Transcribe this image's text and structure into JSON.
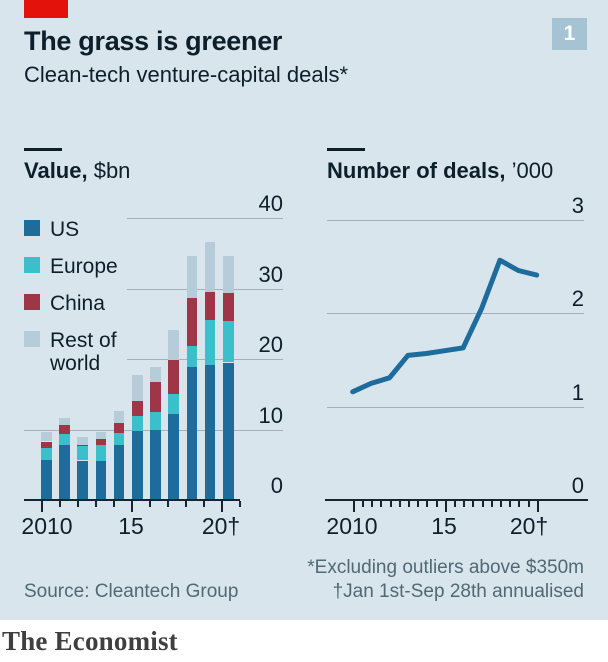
{
  "header": {
    "title": "The grass is greener",
    "subtitle": "Clean-tech venture-capital deals*",
    "figure_number": "1"
  },
  "panels": {
    "left": {
      "title_bold": "Value,",
      "title_unit": " $bn"
    },
    "right": {
      "title_bold": "Number of deals,",
      "title_unit": " ’000"
    }
  },
  "chart_data": [
    {
      "type": "bar",
      "stacked": true,
      "title": "Value, $bn",
      "categories": [
        2010,
        2011,
        2012,
        2013,
        2014,
        2015,
        2016,
        2017,
        2018,
        2019,
        2020
      ],
      "series": [
        {
          "name": "US",
          "color": "#1d6c9c",
          "values": [
            5.7,
            7.8,
            5.6,
            5.6,
            7.8,
            9.8,
            9.9,
            12.2,
            18.9,
            19.1,
            19.5
          ]
        },
        {
          "name": "Europe",
          "color": "#3bbfca",
          "values": [
            1.7,
            1.6,
            2.0,
            2.2,
            1.7,
            2.1,
            2.6,
            2.8,
            3.0,
            6.4,
            5.9
          ]
        },
        {
          "name": "China",
          "color": "#9e3647",
          "values": [
            0.9,
            1.2,
            0.2,
            0.9,
            1.4,
            2.1,
            4.2,
            4.9,
            6.8,
            4.0,
            3.9
          ]
        },
        {
          "name": "Rest of world",
          "color": "#b6cdd9",
          "values": [
            1.4,
            1.1,
            1.1,
            0.9,
            1.7,
            3.8,
            2.2,
            4.2,
            5.9,
            7.1,
            5.3
          ]
        }
      ],
      "ylim": [
        0,
        40
      ],
      "yticks": [
        0,
        10,
        20,
        30,
        40
      ],
      "xtick_labels": [
        "2010",
        "15",
        "20†"
      ],
      "grid": true,
      "legend_position": "left"
    },
    {
      "type": "line",
      "title": "Number of deals, ’000",
      "x": [
        2010,
        2011,
        2012,
        2013,
        2014,
        2015,
        2016,
        2017,
        2018,
        2019,
        2020
      ],
      "values": [
        1.16,
        1.25,
        1.31,
        1.55,
        1.57,
        1.6,
        1.63,
        2.05,
        2.57,
        2.46,
        2.41
      ],
      "color": "#1d6c9c",
      "ylim": [
        0,
        3
      ],
      "yticks": [
        0,
        1,
        2,
        3
      ],
      "xtick_labels": [
        "2010",
        "15",
        "20†"
      ],
      "grid": true
    }
  ],
  "footnotes": [
    "*Excluding outliers above $350m",
    "†Jan 1st-Sep 28th annualised"
  ],
  "source": "Source: Cleantech Group",
  "brand": "The Economist",
  "colors": {
    "background": "#d8e5ec",
    "accent_red": "#e3120b",
    "badge_bg": "#a5c3d3",
    "grid": "#a3b1b8",
    "axis": "#16242d",
    "dark_text": "#0d1f2b",
    "muted_text": "#526974",
    "us": "#1d6c9c",
    "europe": "#3bbfca",
    "china": "#9e3647",
    "rest_of_world": "#b6cdd9",
    "line": "#1d6c9c"
  }
}
